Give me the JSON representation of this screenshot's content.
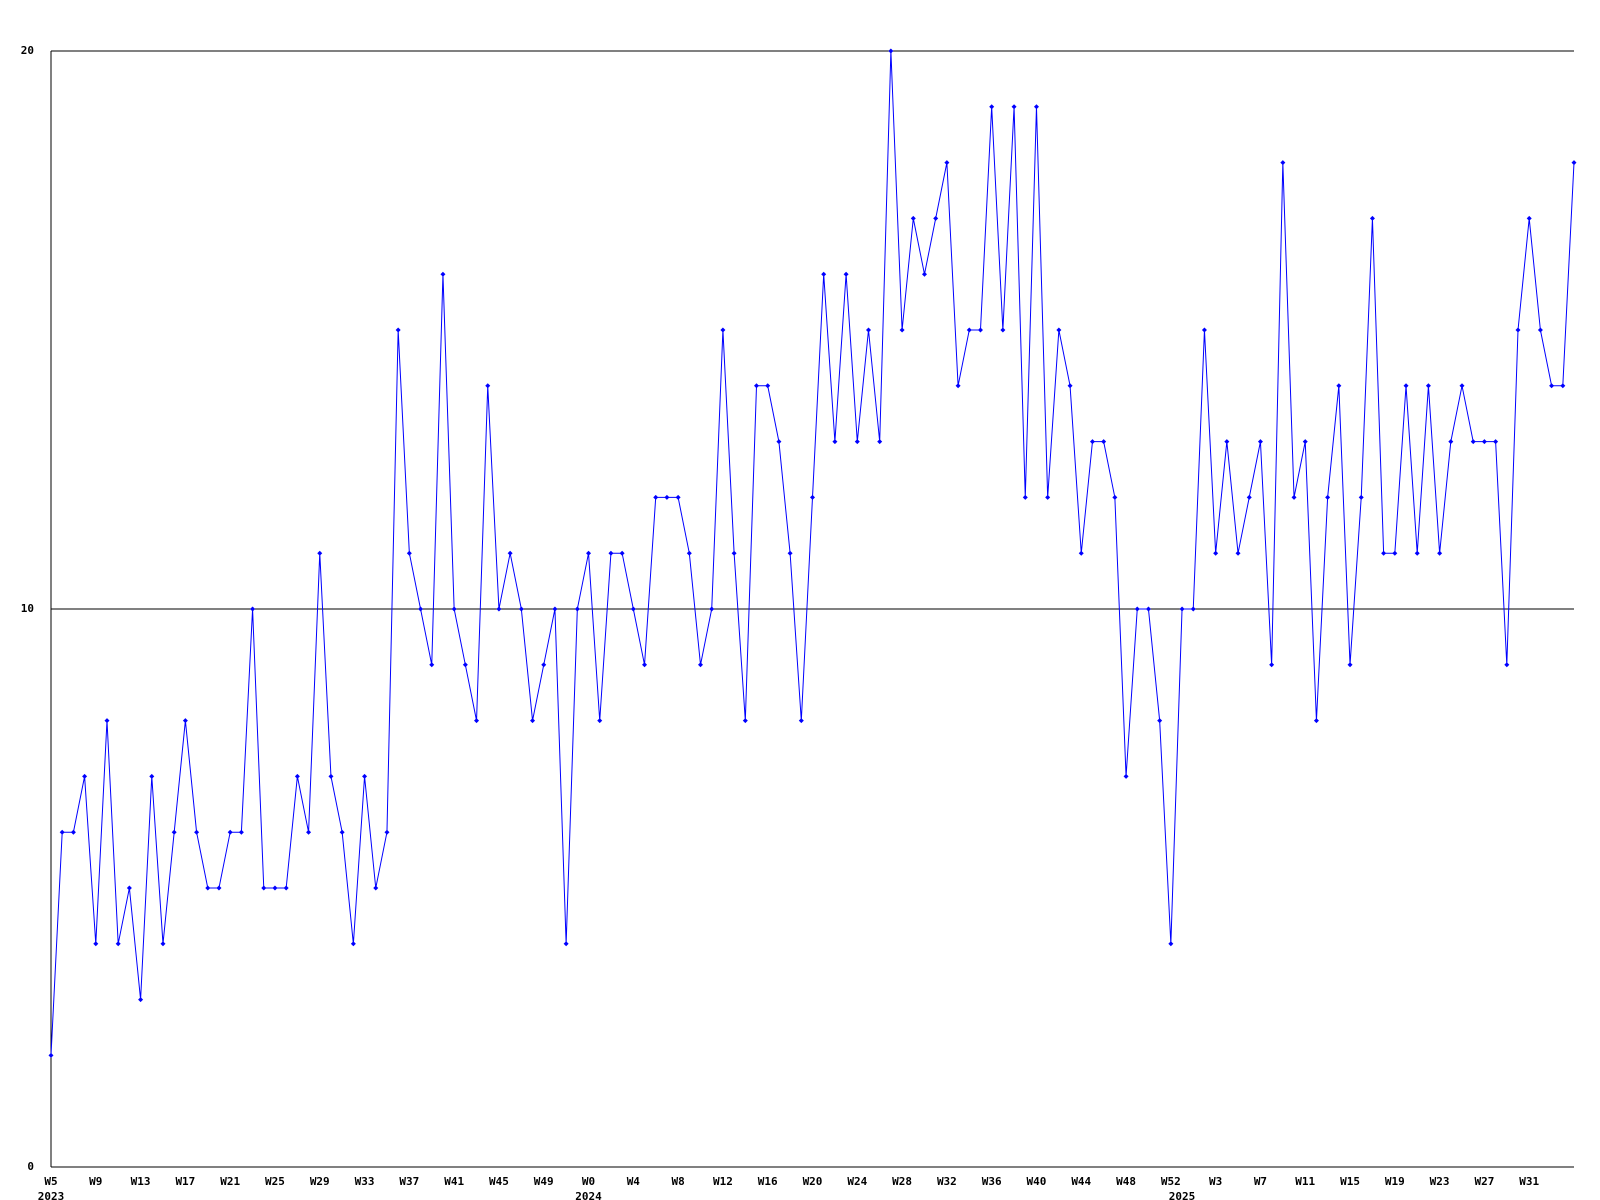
{
  "chart_data": {
    "type": "line",
    "categories": [
      "W5",
      null,
      null,
      null,
      "W9",
      null,
      null,
      null,
      "W13",
      null,
      null,
      null,
      "W17",
      null,
      null,
      null,
      "W21",
      null,
      null,
      null,
      "W25",
      null,
      null,
      null,
      "W29",
      null,
      null,
      null,
      "W33",
      null,
      null,
      null,
      "W37",
      null,
      null,
      null,
      "W41",
      null,
      null,
      null,
      "W45",
      null,
      null,
      null,
      "W49",
      null,
      null,
      null,
      "W0",
      null,
      null,
      null,
      "W4",
      null,
      null,
      null,
      "W8",
      null,
      null,
      null,
      "W12",
      null,
      null,
      null,
      "W16",
      null,
      null,
      null,
      "W20",
      null,
      null,
      null,
      "W24",
      null,
      null,
      null,
      "W28",
      null,
      null,
      null,
      "W32",
      null,
      null,
      null,
      "W36",
      null,
      null,
      null,
      "W40",
      null,
      null,
      null,
      "W44",
      null,
      null,
      null,
      "W48",
      null,
      null,
      null,
      "W52",
      null,
      null,
      null,
      "W3",
      null,
      null,
      null,
      "W7",
      null,
      null,
      null,
      "W11",
      null,
      null,
      null,
      "W15",
      null,
      null,
      null,
      "W19",
      null,
      null,
      null,
      "W23",
      null,
      null,
      null,
      "W27",
      null,
      null,
      null,
      "W31",
      null,
      null,
      null,
      null
    ],
    "category_years": [
      "2023",
      null,
      null,
      null,
      null,
      null,
      null,
      null,
      null,
      null,
      null,
      null,
      null,
      null,
      null,
      null,
      null,
      null,
      null,
      null,
      null,
      null,
      null,
      null,
      null,
      null,
      null,
      null,
      null,
      null,
      null,
      null,
      null,
      null,
      null,
      null,
      null,
      null,
      null,
      null,
      null,
      null,
      null,
      null,
      null,
      null,
      null,
      null,
      "2024",
      null,
      null,
      null,
      null,
      null,
      null,
      null,
      null,
      null,
      null,
      null,
      null,
      null,
      null,
      null,
      null,
      null,
      null,
      null,
      null,
      null,
      null,
      null,
      null,
      null,
      null,
      null,
      null,
      null,
      null,
      null,
      null,
      null,
      null,
      null,
      null,
      null,
      null,
      null,
      null,
      null,
      null,
      null,
      null,
      null,
      null,
      null,
      null,
      null,
      null,
      null,
      null,
      "2025",
      null,
      null,
      null,
      null,
      null,
      null,
      null,
      null,
      null,
      null,
      null,
      null,
      null,
      null,
      null,
      null,
      null,
      null,
      null,
      null,
      null,
      null,
      null,
      null,
      null,
      null,
      null,
      null,
      null,
      null,
      null,
      null,
      null,
      null,
      null
    ],
    "values": [
      2,
      6,
      6,
      7,
      4,
      8,
      4,
      5,
      3,
      7,
      4,
      6,
      8,
      6,
      5,
      5,
      6,
      6,
      10,
      5,
      5,
      5,
      7,
      6,
      11,
      7,
      6,
      4,
      7,
      5,
      6,
      15,
      11,
      10,
      9,
      16,
      10,
      9,
      8,
      14,
      10,
      11,
      10,
      8,
      9,
      10,
      4,
      10,
      11,
      8,
      11,
      11,
      10,
      9,
      12,
      12,
      12,
      11,
      9,
      10,
      15,
      11,
      8,
      14,
      14,
      13,
      11,
      8,
      12,
      16,
      13,
      16,
      13,
      15,
      13,
      20,
      15,
      17,
      16,
      17,
      18,
      14,
      15,
      15,
      19,
      15,
      19,
      12,
      19,
      12,
      15,
      14,
      11,
      13,
      13,
      12,
      7,
      10,
      10,
      8,
      4,
      10,
      10,
      15,
      11,
      13,
      11,
      12,
      13,
      9,
      18,
      12,
      13,
      8,
      12,
      14,
      9,
      12,
      17,
      11,
      11,
      14,
      11,
      14,
      11,
      13,
      14,
      13,
      13,
      13,
      9,
      15,
      17,
      15,
      14,
      14,
      18
    ],
    "color": "#0000ff",
    "ylim": [
      0,
      20
    ],
    "yticks": [
      0,
      10,
      20
    ],
    "grid": true
  }
}
